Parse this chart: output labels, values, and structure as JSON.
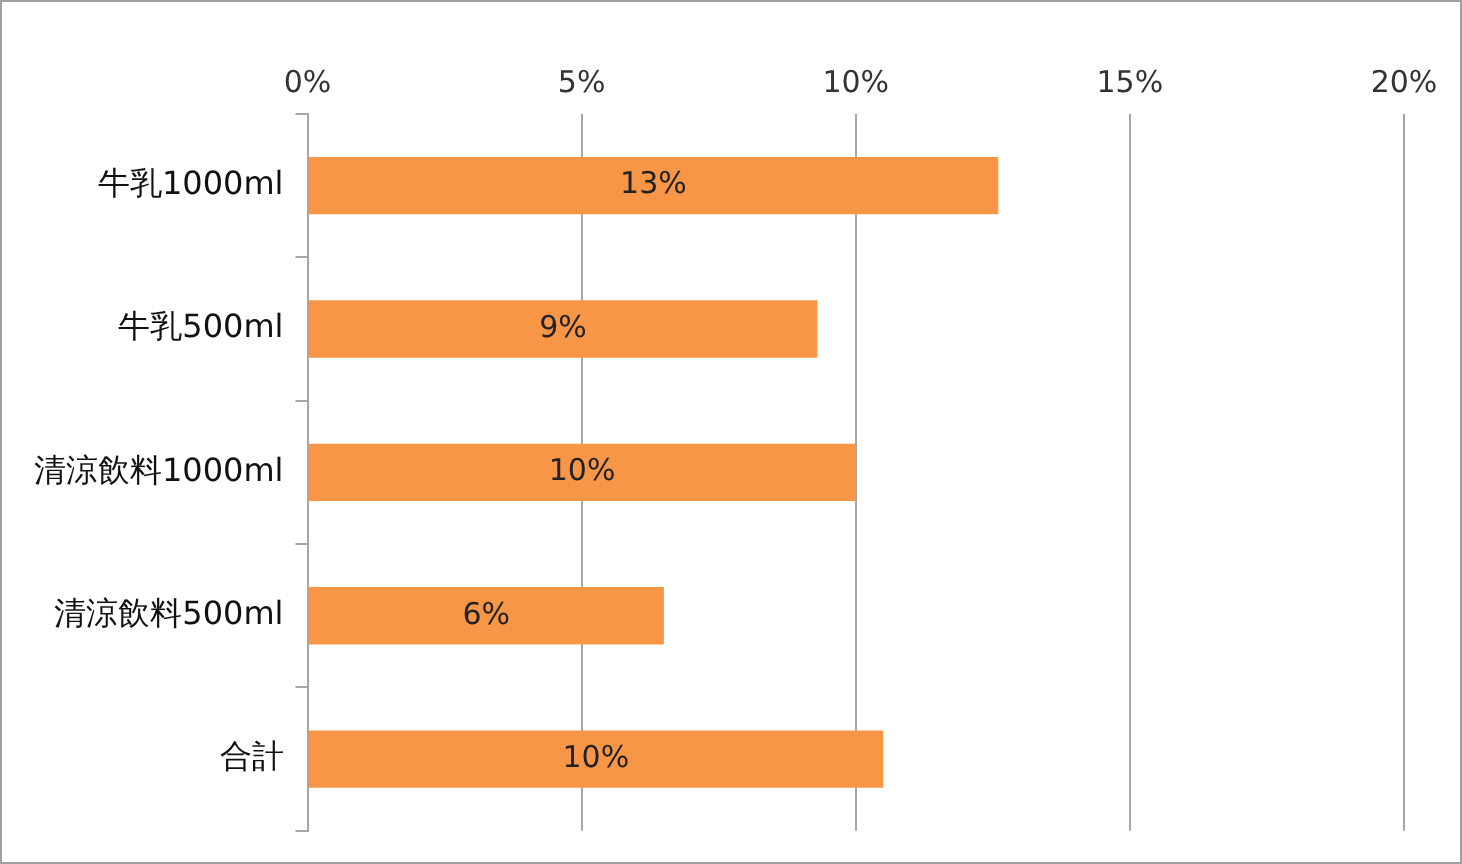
{
  "chart_data": {
    "type": "bar",
    "orientation": "horizontal",
    "categories": [
      "牛乳1000ml",
      "牛乳500ml",
      "清涼飲料1000ml",
      "清涼飲料500ml",
      "合計"
    ],
    "values": [
      12.6,
      9.3,
      10.0,
      6.5,
      10.5
    ],
    "value_labels": [
      "13%",
      "9%",
      "10%",
      "6%",
      "10%"
    ],
    "color": "#f79646",
    "xlim": [
      0,
      20
    ],
    "xticks": [
      {
        "value": 0,
        "label": "0%"
      },
      {
        "value": 5,
        "label": "5%"
      },
      {
        "value": 10,
        "label": "10%"
      },
      {
        "value": 15,
        "label": "15%"
      },
      {
        "value": 20,
        "label": "20%"
      }
    ],
    "grid": "x",
    "legend": false
  }
}
